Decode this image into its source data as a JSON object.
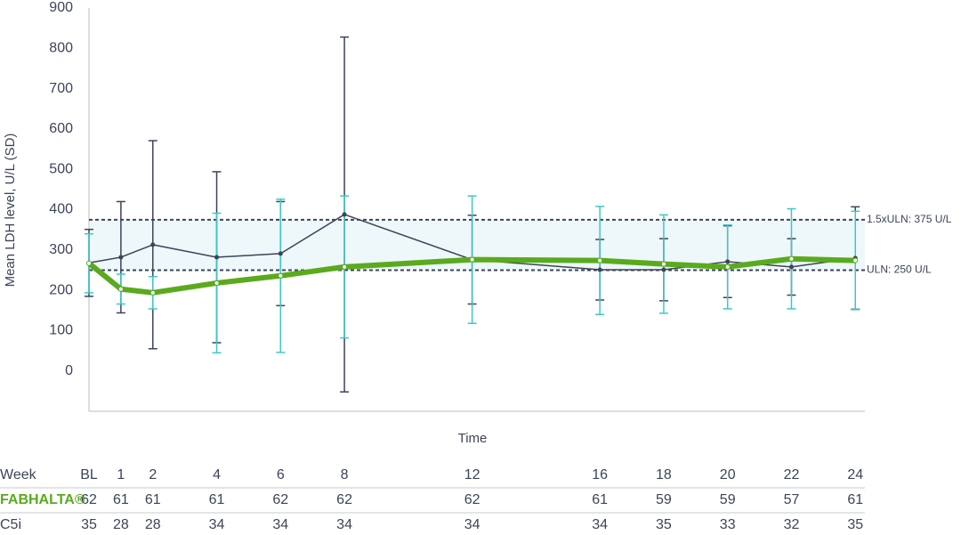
{
  "chart_data": {
    "type": "line",
    "y_label": "Mean LDH level, U/L (SD)",
    "x_label": "Time",
    "table_header": "Week",
    "x": [
      0,
      1,
      2,
      4,
      6,
      8,
      12,
      16,
      18,
      20,
      22,
      24
    ],
    "xlim": [
      0,
      24.3
    ],
    "xticks": [
      {
        "value": 0,
        "label": "BL"
      },
      1,
      2,
      4,
      6,
      8,
      12,
      16,
      18,
      20,
      22,
      24
    ],
    "ylim": [
      -100,
      900
    ],
    "yticks": [
      0,
      100,
      200,
      300,
      400,
      500,
      600,
      700,
      800,
      900
    ],
    "reference_lines": [
      {
        "value": 250,
        "label": "ULN: 250 U/L"
      },
      {
        "value": 375,
        "label": "1.5xULN: 375 U/L"
      }
    ],
    "band_color": "#eef7f9",
    "series": [
      {
        "name": "C5i",
        "color": "#3c4458",
        "bar_color": "#3c4458",
        "width": 1.5,
        "values": [
          268,
          282,
          313,
          282,
          291,
          388,
          276,
          251,
          251,
          271,
          258,
          280
        ],
        "sd": [
          83,
          138,
          258,
          212,
          129,
          440,
          110,
          75,
          77,
          89,
          70,
          127
        ],
        "at_risk": [
          35,
          28,
          28,
          34,
          34,
          34,
          34,
          34,
          35,
          33,
          32,
          35
        ]
      },
      {
        "name": "FABHALTA®",
        "color": "#5aaa1e",
        "bar_color": "#3cc8c8",
        "width": 6,
        "values": [
          267,
          203,
          194,
          218,
          236,
          258,
          276,
          274,
          265,
          258,
          278,
          274
        ],
        "sd": [
          73,
          37,
          40,
          173,
          190,
          176,
          158,
          134,
          122,
          104,
          124,
          122
        ],
        "at_risk": [
          62,
          61,
          61,
          61,
          62,
          62,
          62,
          61,
          59,
          59,
          57,
          61
        ]
      }
    ]
  }
}
